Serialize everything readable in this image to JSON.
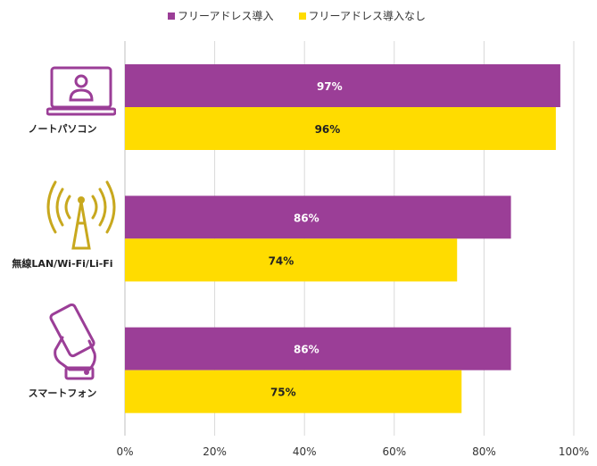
{
  "chart_data": {
    "type": "bar",
    "orientation": "horizontal",
    "categories": [
      "ノートパソコン",
      "無線LAN/Wi-Fi/Li-Fi",
      "スマートフォン"
    ],
    "series": [
      {
        "name": "フリーアドレス導入",
        "color": "#9b3e97",
        "values": [
          97,
          86,
          86
        ]
      },
      {
        "name": "フリーアドレス導入なし",
        "color": "#ffdc00",
        "values": [
          96,
          74,
          75
        ]
      }
    ],
    "data_labels": [
      [
        "97%",
        "86%",
        "86%"
      ],
      [
        "96%",
        "74%",
        "75%"
      ]
    ],
    "xlim": [
      0,
      100
    ],
    "x_ticks": [
      "0%",
      "20%",
      "40%",
      "60%",
      "80%",
      "100%"
    ],
    "grid": "vertical",
    "legend_position": "top"
  },
  "icons": [
    "laptop-user-icon",
    "wireless-antenna-icon",
    "smartphone-hand-icon"
  ],
  "colors": {
    "icon": "#9b3e97",
    "icon_wireless": "#c8a81e",
    "grid": "#d9d9d9"
  }
}
